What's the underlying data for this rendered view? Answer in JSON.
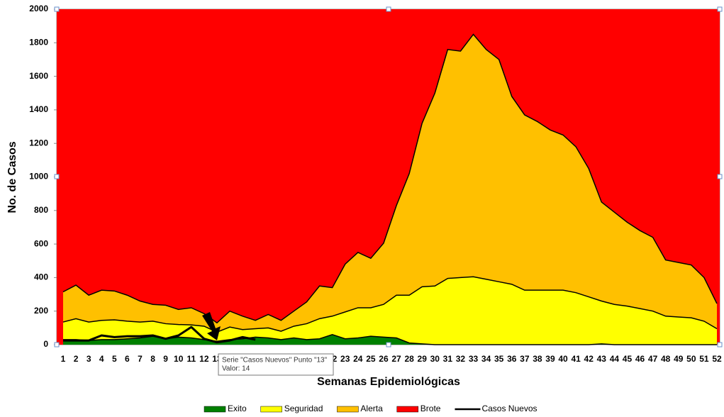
{
  "chart_data": {
    "type": "area",
    "x_label": "Semanas Epidemiológicas",
    "y_label": "No. de Casos",
    "categories": [
      1,
      2,
      3,
      4,
      5,
      6,
      7,
      8,
      9,
      10,
      11,
      12,
      13,
      14,
      15,
      16,
      17,
      18,
      19,
      20,
      21,
      22,
      23,
      24,
      25,
      26,
      27,
      28,
      29,
      30,
      31,
      32,
      33,
      34,
      35,
      36,
      37,
      38,
      39,
      40,
      41,
      42,
      43,
      44,
      45,
      46,
      47,
      48,
      49,
      50,
      51,
      52
    ],
    "ylim": [
      0,
      2000
    ],
    "yticks": [
      0,
      200,
      400,
      600,
      800,
      1000,
      1200,
      1400,
      1600,
      1800,
      2000
    ],
    "grid": false,
    "legend": "bottom",
    "series": [
      {
        "name": "Brote",
        "color": "#ff0000",
        "kind": "area",
        "values": [
          2000,
          2000,
          2000,
          2000,
          2000,
          2000,
          2000,
          2000,
          2000,
          2000,
          2000,
          2000,
          2000,
          2000,
          2000,
          2000,
          2000,
          2000,
          2000,
          2000,
          2000,
          2000,
          2000,
          2000,
          2000,
          2000,
          2000,
          2000,
          2000,
          2000,
          2000,
          2000,
          2000,
          2000,
          2000,
          2000,
          2000,
          2000,
          2000,
          2000,
          2000,
          2000,
          2000,
          2000,
          2000,
          2000,
          2000,
          2000,
          2000,
          2000,
          2000,
          2000
        ]
      },
      {
        "name": "Alerta",
        "color": "#ffc000",
        "kind": "area",
        "values": [
          315,
          355,
          295,
          325,
          320,
          295,
          260,
          240,
          235,
          210,
          220,
          185,
          130,
          200,
          170,
          145,
          180,
          145,
          200,
          255,
          350,
          340,
          480,
          550,
          515,
          605,
          830,
          1020,
          1320,
          1500,
          1760,
          1750,
          1850,
          1760,
          1700,
          1480,
          1370,
          1330,
          1280,
          1250,
          1180,
          1050,
          850,
          790,
          730,
          680,
          640,
          505,
          490,
          475,
          400,
          245
        ]
      },
      {
        "name": "Seguridad",
        "color": "#ffff00",
        "kind": "area",
        "values": [
          135,
          155,
          135,
          145,
          148,
          140,
          135,
          140,
          125,
          120,
          118,
          110,
          75,
          105,
          90,
          95,
          100,
          80,
          110,
          125,
          155,
          170,
          195,
          220,
          220,
          240,
          295,
          295,
          345,
          350,
          395,
          400,
          405,
          390,
          375,
          360,
          325,
          325,
          325,
          325,
          310,
          285,
          260,
          240,
          230,
          215,
          200,
          170,
          165,
          160,
          140,
          95
        ]
      },
      {
        "name": "Exito",
        "color": "#008000",
        "kind": "area",
        "values": [
          30,
          30,
          25,
          30,
          30,
          35,
          40,
          50,
          35,
          45,
          40,
          30,
          20,
          30,
          35,
          45,
          40,
          30,
          40,
          30,
          35,
          60,
          35,
          40,
          50,
          45,
          40,
          10,
          5,
          0,
          0,
          0,
          0,
          0,
          0,
          0,
          0,
          0,
          0,
          0,
          0,
          0,
          5,
          0,
          0,
          0,
          0,
          0,
          0,
          0,
          0,
          0
        ]
      },
      {
        "name": "Casos Nuevos",
        "color": "#000000",
        "kind": "line",
        "values": [
          25,
          25,
          25,
          55,
          45,
          50,
          50,
          55,
          35,
          55,
          105,
          35,
          14,
          25,
          45,
          30,
          null,
          null,
          null,
          null,
          null,
          null,
          null,
          null,
          null,
          null,
          null,
          null,
          null,
          null,
          null,
          null,
          null,
          null,
          null,
          null,
          null,
          null,
          null,
          null,
          null,
          null,
          null,
          null,
          null,
          null,
          null,
          null,
          null,
          null,
          null,
          null
        ]
      }
    ],
    "legend_order": [
      "Exito",
      "Seguridad",
      "Alerta",
      "Brote",
      "Casos Nuevos"
    ],
    "tooltip": [
      "Serie \"Casos Nuevos\" Punto \"13\"",
      "Valor: 14"
    ]
  }
}
